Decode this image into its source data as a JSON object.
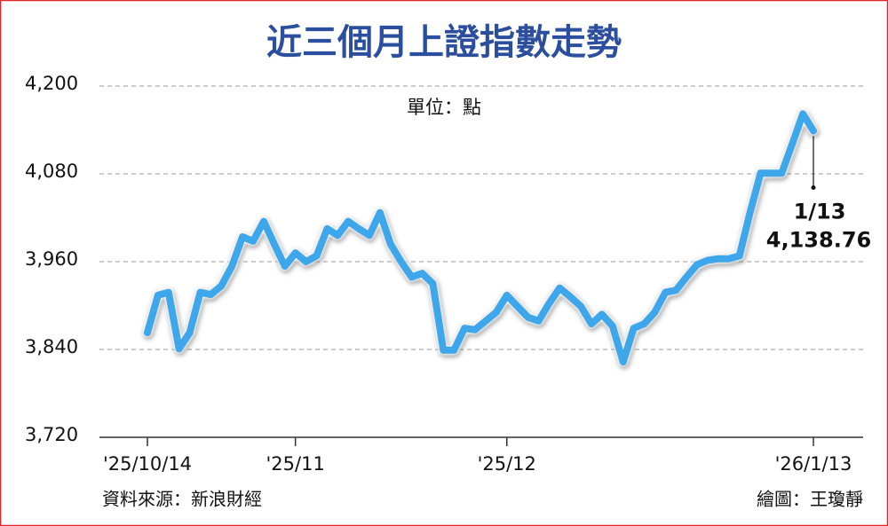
{
  "chart_data": {
    "type": "line",
    "title": "近三個月上證指數走勢",
    "unit": "單位：點",
    "source": "資料來源：新浪財經",
    "credit": "繪圖：王瓊靜",
    "annotation": "1/13",
    "color": "#3ea6ea",
    "grid": true,
    "categories": [
      "'25/10/14",
      null,
      null,
      null,
      null,
      null,
      null,
      null,
      null,
      null,
      null,
      null,
      null,
      null,
      "'25/11",
      null,
      null,
      null,
      null,
      null,
      null,
      null,
      null,
      null,
      null,
      null,
      null,
      null,
      null,
      null,
      null,
      null,
      null,
      null,
      "'25/12",
      null,
      null,
      null,
      null,
      null,
      null,
      null,
      null,
      null,
      null,
      null,
      null,
      null,
      null,
      null,
      null,
      null,
      null,
      null,
      null,
      null,
      null,
      null,
      null,
      null,
      null,
      null,
      null,
      "'26/1/13"
    ],
    "values": [
      3863,
      3914,
      3918,
      3841,
      3863,
      3918,
      3915,
      3927,
      3954,
      3994,
      3988,
      4015,
      3984,
      3954,
      3972,
      3960,
      3968,
      4005,
      3996,
      4015,
      4005,
      3996,
      4027,
      3984,
      3960,
      3939,
      3944,
      3930,
      3839,
      3839,
      3869,
      3867,
      3879,
      3891,
      3914,
      3899,
      3884,
      3879,
      3903,
      3924,
      3912,
      3899,
      3875,
      3888,
      3872,
      3823,
      3869,
      3875,
      3891,
      3918,
      3921,
      3939,
      3956,
      3962,
      3964,
      3964,
      3968,
      4027,
      4081,
      4081,
      4081,
      4121,
      4162,
      4138.76
    ],
    "value_labels": [
      null,
      null,
      null,
      null,
      null,
      null,
      null,
      null,
      null,
      null,
      null,
      null,
      null,
      null,
      null,
      null,
      null,
      null,
      null,
      null,
      null,
      null,
      null,
      null,
      null,
      null,
      null,
      null,
      null,
      null,
      null,
      null,
      null,
      null,
      null,
      null,
      null,
      null,
      null,
      null,
      null,
      null,
      null,
      null,
      null,
      null,
      null,
      null,
      null,
      null,
      null,
      null,
      null,
      null,
      null,
      null,
      null,
      null,
      null,
      null,
      null,
      null,
      null,
      "4,138.76"
    ],
    "ylim": [
      3720,
      4200
    ],
    "yticks": [
      {
        "value": 3720,
        "label": "3,720"
      },
      {
        "value": 3840,
        "label": "3,840"
      },
      {
        "value": 3960,
        "label": "3,960"
      },
      {
        "value": 4080,
        "label": "4,080"
      },
      {
        "value": 4200,
        "label": "4,200"
      }
    ]
  }
}
